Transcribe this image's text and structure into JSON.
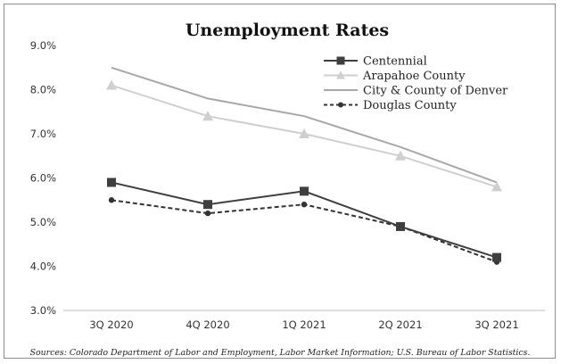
{
  "chart_data": {
    "type": "line",
    "title": "Unemployment Rates",
    "categories": [
      "3Q 2020",
      "4Q 2020",
      "1Q 2021",
      "2Q 2021",
      "3Q 2021"
    ],
    "ylim": [
      3.0,
      9.0
    ],
    "y_ticks": [
      "3.0%",
      "4.0%",
      "5.0%",
      "6.0%",
      "7.0%",
      "8.0%",
      "9.0%"
    ],
    "y_tick_values": [
      3.0,
      4.0,
      5.0,
      6.0,
      7.0,
      8.0,
      9.0
    ],
    "grid": false,
    "legend_position": "top-right",
    "series": [
      {
        "name": "Centennial",
        "values": [
          5.9,
          5.4,
          5.7,
          4.9,
          4.2
        ],
        "color": "#3f3f3f",
        "marker": "square",
        "line_style": "solid"
      },
      {
        "name": "Arapahoe County",
        "values": [
          8.1,
          7.4,
          7.0,
          6.5,
          5.8
        ],
        "color": "#cfcfcf",
        "marker": "triangle",
        "line_style": "solid"
      },
      {
        "name": "City & County of Denver",
        "values": [
          8.5,
          7.8,
          7.4,
          6.7,
          5.9
        ],
        "color": "#a8a8a8",
        "marker": "none",
        "line_style": "solid"
      },
      {
        "name": "Douglas County",
        "values": [
          5.5,
          5.2,
          5.4,
          4.9,
          4.1
        ],
        "color": "#333333",
        "marker": "circle",
        "line_style": "dashed"
      }
    ],
    "source": "Sources: Colorado Department of Labor and Employment, Labor Market Information; U.S. Bureau of Labor Statistics."
  }
}
